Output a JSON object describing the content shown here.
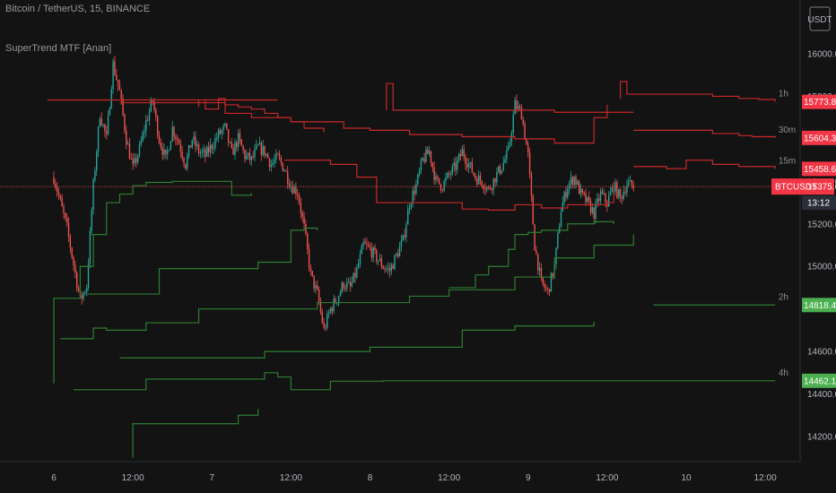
{
  "header": {
    "symbol_title": "Bitcoin / TetherUS, 15, BINANCE",
    "indicator_title": "SuperTrend MTF [Anan]",
    "currency": "USDT"
  },
  "colors": {
    "background": "#131313",
    "up_candle": "#26a69a",
    "down_candle": "#ef5350",
    "supertrend_up": "#2e7d32",
    "supertrend_down": "#c62828",
    "red_tag": "#f23645",
    "green_tag": "#4caf50"
  },
  "chart_data": {
    "type": "line",
    "x_axis_labels": [
      "6",
      "12:00",
      "7",
      "12:00",
      "8",
      "12:00",
      "9",
      "12:00",
      "10",
      "12:00"
    ],
    "x_axis_positions_hours": [
      0,
      12,
      24,
      36,
      48,
      60,
      72,
      84,
      96,
      108
    ],
    "y_axis_labels": [
      "16000.00",
      "15800.00",
      "15600.00",
      "15400.00",
      "15200.00",
      "15000.00",
      "14800.00",
      "14600.00",
      "14400.00",
      "14200.00"
    ],
    "ylim": [
      14090,
      16330
    ],
    "current_price": {
      "symbol": "BTCUSDT",
      "value": 15375.6,
      "countdown": "13:12"
    },
    "price_tags": [
      {
        "value": 15773.83,
        "text": "15773.83",
        "kind": "red"
      },
      {
        "value": 15604.37,
        "text": "15604.37",
        "kind": "red"
      },
      {
        "value": 15458.68,
        "text": "15458.68",
        "kind": "red"
      },
      {
        "value": 14818.48,
        "text": "14818.48",
        "kind": "green"
      },
      {
        "value": 14462.11,
        "text": "14462.11",
        "kind": "green"
      }
    ],
    "series": [
      {
        "name": "1h",
        "direction": "down",
        "points": [
          [
            34,
            15783
          ],
          [
            -1,
            15783
          ],
          [
            22,
            15750
          ],
          [
            22,
            15783
          ],
          [
            23,
            15740
          ],
          [
            25,
            15790
          ],
          [
            26,
            15760
          ],
          [
            28,
            15750
          ],
          [
            30,
            15740
          ],
          [
            32,
            15720
          ],
          [
            34,
            15700
          ],
          [
            36,
            15680
          ],
          [
            38,
            15650
          ],
          [
            41,
            15630
          ]
        ]
      },
      {
        "name": "1h",
        "direction": "down",
        "points": [
          [
            50.5,
            15735
          ],
          [
            50.5,
            15860
          ],
          [
            51.5,
            15860
          ],
          [
            51.5,
            15735
          ],
          [
            65,
            15735
          ],
          [
            76,
            15725
          ],
          [
            88,
            15725
          ]
        ]
      },
      {
        "name": "1h",
        "direction": "down",
        "points": [
          [
            86,
            15790
          ],
          [
            86,
            15870
          ],
          [
            87,
            15870
          ],
          [
            87,
            15810
          ],
          [
            96,
            15810
          ],
          [
            100,
            15800
          ],
          [
            104,
            15790
          ],
          [
            107,
            15785
          ],
          [
            109.5,
            15773.83
          ]
        ]
      },
      {
        "name": "30m",
        "direction": "down",
        "points": [
          [
            10,
            15770
          ],
          [
            22,
            15770
          ],
          [
            26,
            15720
          ],
          [
            30,
            15700
          ],
          [
            36,
            15680
          ],
          [
            44,
            15650
          ],
          [
            48,
            15640
          ],
          [
            54,
            15620
          ],
          [
            62,
            15610
          ],
          [
            70,
            15600
          ],
          [
            76,
            15580
          ],
          [
            82,
            15700
          ],
          [
            84,
            15760
          ]
        ]
      },
      {
        "name": "30m",
        "direction": "down",
        "points": [
          [
            88,
            15640
          ],
          [
            94,
            15640
          ],
          [
            100,
            15625
          ],
          [
            104,
            15615
          ],
          [
            106,
            15610
          ],
          [
            109.5,
            15604.37
          ]
        ]
      },
      {
        "name": "15m",
        "direction": "down",
        "points": [
          [
            35,
            15500
          ],
          [
            42,
            15480
          ],
          [
            46,
            15420
          ],
          [
            48,
            15420
          ],
          [
            49,
            15300
          ],
          [
            60,
            15300
          ],
          [
            62,
            15270
          ],
          [
            66,
            15265
          ],
          [
            70,
            15290
          ],
          [
            74,
            15275
          ],
          [
            78,
            15290
          ],
          [
            84,
            15300
          ],
          [
            85,
            15400
          ]
        ]
      },
      {
        "name": "15m",
        "direction": "down",
        "points": [
          [
            88,
            15470
          ],
          [
            93,
            15460
          ],
          [
            96,
            15500
          ],
          [
            100,
            15480
          ],
          [
            104,
            15470
          ],
          [
            109.5,
            15458.68
          ]
        ]
      },
      {
        "name": "2h",
        "direction": "up",
        "points": [
          [
            0,
            14450
          ],
          [
            0,
            14850
          ],
          [
            2,
            14850
          ],
          [
            4,
            15000
          ],
          [
            6,
            15150
          ],
          [
            8,
            15300
          ],
          [
            10,
            15340
          ],
          [
            12,
            15380
          ],
          [
            14,
            15395
          ],
          [
            18,
            15400
          ],
          [
            22,
            15400
          ],
          [
            26,
            15400
          ],
          [
            27,
            15335
          ],
          [
            30,
            15345
          ]
        ]
      },
      {
        "name": "2h",
        "direction": "up",
        "points": [
          [
            60,
            14900
          ],
          [
            64,
            14960
          ],
          [
            66,
            15000
          ],
          [
            69,
            15080
          ],
          [
            70,
            15150
          ],
          [
            72,
            15160
          ],
          [
            74,
            15170
          ],
          [
            78,
            15200
          ],
          [
            82,
            15210
          ],
          [
            84,
            15210
          ],
          [
            85,
            15200
          ]
        ]
      },
      {
        "name": "2h",
        "direction": "up",
        "points": [
          [
            91,
            14818.48
          ],
          [
            109.5,
            14818.48
          ]
        ]
      },
      {
        "name": "4h",
        "direction": "up",
        "points": [
          [
            5,
            14870
          ],
          [
            16,
            14990
          ],
          [
            31,
            15020
          ],
          [
            36,
            15170
          ],
          [
            38,
            15180
          ],
          [
            40,
            15170
          ]
        ]
      },
      {
        "name": "4h",
        "direction": "up",
        "points": [
          [
            1,
            14660
          ],
          [
            6,
            14710
          ],
          [
            8,
            14700
          ],
          [
            14,
            14735
          ],
          [
            22,
            14800
          ],
          [
            40,
            14830
          ],
          [
            48,
            14830
          ],
          [
            54,
            14860
          ],
          [
            60,
            14890
          ],
          [
            70,
            14950
          ],
          [
            76,
            15040
          ],
          [
            82,
            15100
          ],
          [
            88,
            15150
          ]
        ]
      },
      {
        "name": "4h",
        "direction": "up",
        "points": [
          [
            10,
            14570
          ],
          [
            22,
            14570
          ],
          [
            32,
            14600
          ],
          [
            48,
            14620
          ],
          [
            56,
            14620
          ],
          [
            62,
            14700
          ],
          [
            70,
            14720
          ],
          [
            78,
            14720
          ],
          [
            82,
            14740
          ]
        ]
      },
      {
        "name": "4h",
        "direction": "up",
        "points": [
          [
            3,
            14420
          ],
          [
            14,
            14470
          ],
          [
            32,
            14500
          ],
          [
            34,
            14480
          ],
          [
            36,
            14420
          ],
          [
            42,
            14460
          ],
          [
            50,
            14462.11
          ],
          [
            109.5,
            14462.11
          ]
        ]
      },
      {
        "name": "4h",
        "direction": "up",
        "points": [
          [
            12,
            14100
          ],
          [
            12,
            14260
          ],
          [
            25,
            14260
          ],
          [
            28,
            14300
          ],
          [
            31,
            14330
          ]
        ]
      }
    ],
    "price_path": [
      [
        0,
        15420
      ],
      [
        2,
        15180
      ],
      [
        4,
        14840
      ],
      [
        5,
        14910
      ],
      [
        6,
        15380
      ],
      [
        7,
        15720
      ],
      [
        8,
        15600
      ],
      [
        9,
        15950
      ],
      [
        10,
        15820
      ],
      [
        11,
        15600
      ],
      [
        12,
        15460
      ],
      [
        13,
        15550
      ],
      [
        14,
        15680
      ],
      [
        15,
        15780
      ],
      [
        16,
        15600
      ],
      [
        17,
        15500
      ],
      [
        18,
        15650
      ],
      [
        19,
        15580
      ],
      [
        20,
        15480
      ],
      [
        21,
        15600
      ],
      [
        22,
        15540
      ],
      [
        23,
        15520
      ],
      [
        24,
        15570
      ],
      [
        25,
        15620
      ],
      [
        26,
        15650
      ],
      [
        27,
        15530
      ],
      [
        28,
        15600
      ],
      [
        29,
        15520
      ],
      [
        30,
        15500
      ],
      [
        31,
        15560
      ],
      [
        32,
        15540
      ],
      [
        33,
        15480
      ],
      [
        34,
        15510
      ],
      [
        35,
        15460
      ],
      [
        36,
        15380
      ],
      [
        37,
        15350
      ],
      [
        38,
        15180
      ],
      [
        39,
        14960
      ],
      [
        40,
        14870
      ],
      [
        41,
        14700
      ],
      [
        42,
        14800
      ],
      [
        43,
        14850
      ],
      [
        44,
        14920
      ],
      [
        45,
        14900
      ],
      [
        46,
        14980
      ],
      [
        47,
        15100
      ],
      [
        48,
        15080
      ],
      [
        49,
        15040
      ],
      [
        50,
        15000
      ],
      [
        51,
        14980
      ],
      [
        52,
        15050
      ],
      [
        53,
        15120
      ],
      [
        54,
        15300
      ],
      [
        55,
        15380
      ],
      [
        56,
        15500
      ],
      [
        57,
        15540
      ],
      [
        58,
        15400
      ],
      [
        59,
        15380
      ],
      [
        60,
        15430
      ],
      [
        61,
        15470
      ],
      [
        62,
        15540
      ],
      [
        63,
        15480
      ],
      [
        64,
        15420
      ],
      [
        65,
        15400
      ],
      [
        66,
        15360
      ],
      [
        67,
        15420
      ],
      [
        68,
        15470
      ],
      [
        69,
        15540
      ],
      [
        70,
        15760
      ],
      [
        71,
        15720
      ],
      [
        72,
        15520
      ],
      [
        73,
        15100
      ],
      [
        74,
        14920
      ],
      [
        75,
        14880
      ],
      [
        76,
        15000
      ],
      [
        77,
        15270
      ],
      [
        78,
        15380
      ],
      [
        79,
        15420
      ],
      [
        80,
        15340
      ],
      [
        81,
        15300
      ],
      [
        82,
        15250
      ],
      [
        83,
        15340
      ],
      [
        84,
        15300
      ],
      [
        85,
        15380
      ],
      [
        86,
        15320
      ],
      [
        87,
        15390
      ],
      [
        88,
        15375.6
      ]
    ]
  }
}
